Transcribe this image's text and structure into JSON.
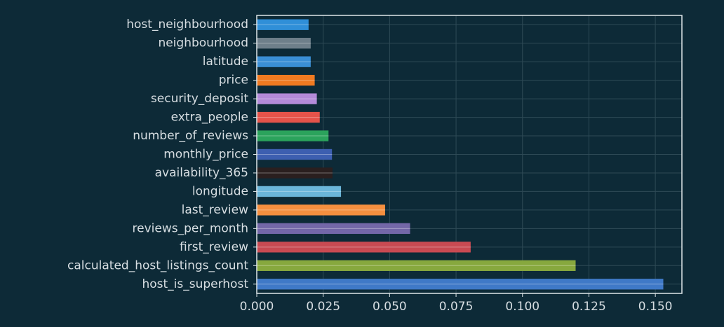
{
  "chart_data": {
    "type": "bar",
    "orientation": "horizontal",
    "title": "",
    "xlabel": "",
    "ylabel": "",
    "xlim": [
      0.0,
      0.16
    ],
    "grid": true,
    "categories": [
      "host_neighbourhood",
      "neighbourhood",
      "latitude",
      "price",
      "security_deposit",
      "extra_people",
      "number_of_reviews",
      "monthly_price",
      "availability_365",
      "longitude",
      "last_review",
      "reviews_per_month",
      "first_review",
      "calculated_host_listings_count",
      "host_is_superhost"
    ],
    "values": [
      0.0195,
      0.0203,
      0.0203,
      0.0218,
      0.0226,
      0.0237,
      0.027,
      0.0283,
      0.0285,
      0.0317,
      0.0483,
      0.0577,
      0.0805,
      0.12,
      0.153
    ],
    "bar_colors": [
      "#2f8fd8",
      "#6e7f8a",
      "#3a8fd6",
      "#f07a21",
      "#b38ad9",
      "#e5534a",
      "#2ba35c",
      "#3d5fb0",
      "#2a1f1f",
      "#6bb6da",
      "#f58f3f",
      "#7367a8",
      "#c94a52",
      "#87a83e",
      "#3f79c7"
    ],
    "xticks": [
      "0.000",
      "0.025",
      "0.050",
      "0.075",
      "0.100",
      "0.125",
      "0.150"
    ],
    "xtick_values": [
      0.0,
      0.025,
      0.05,
      0.075,
      0.1,
      0.125,
      0.15
    ]
  },
  "colors": {
    "background": "#0d2a37",
    "frame": "#dfe6e9",
    "grid": "#2e4a56",
    "text": "#d7dee2"
  }
}
